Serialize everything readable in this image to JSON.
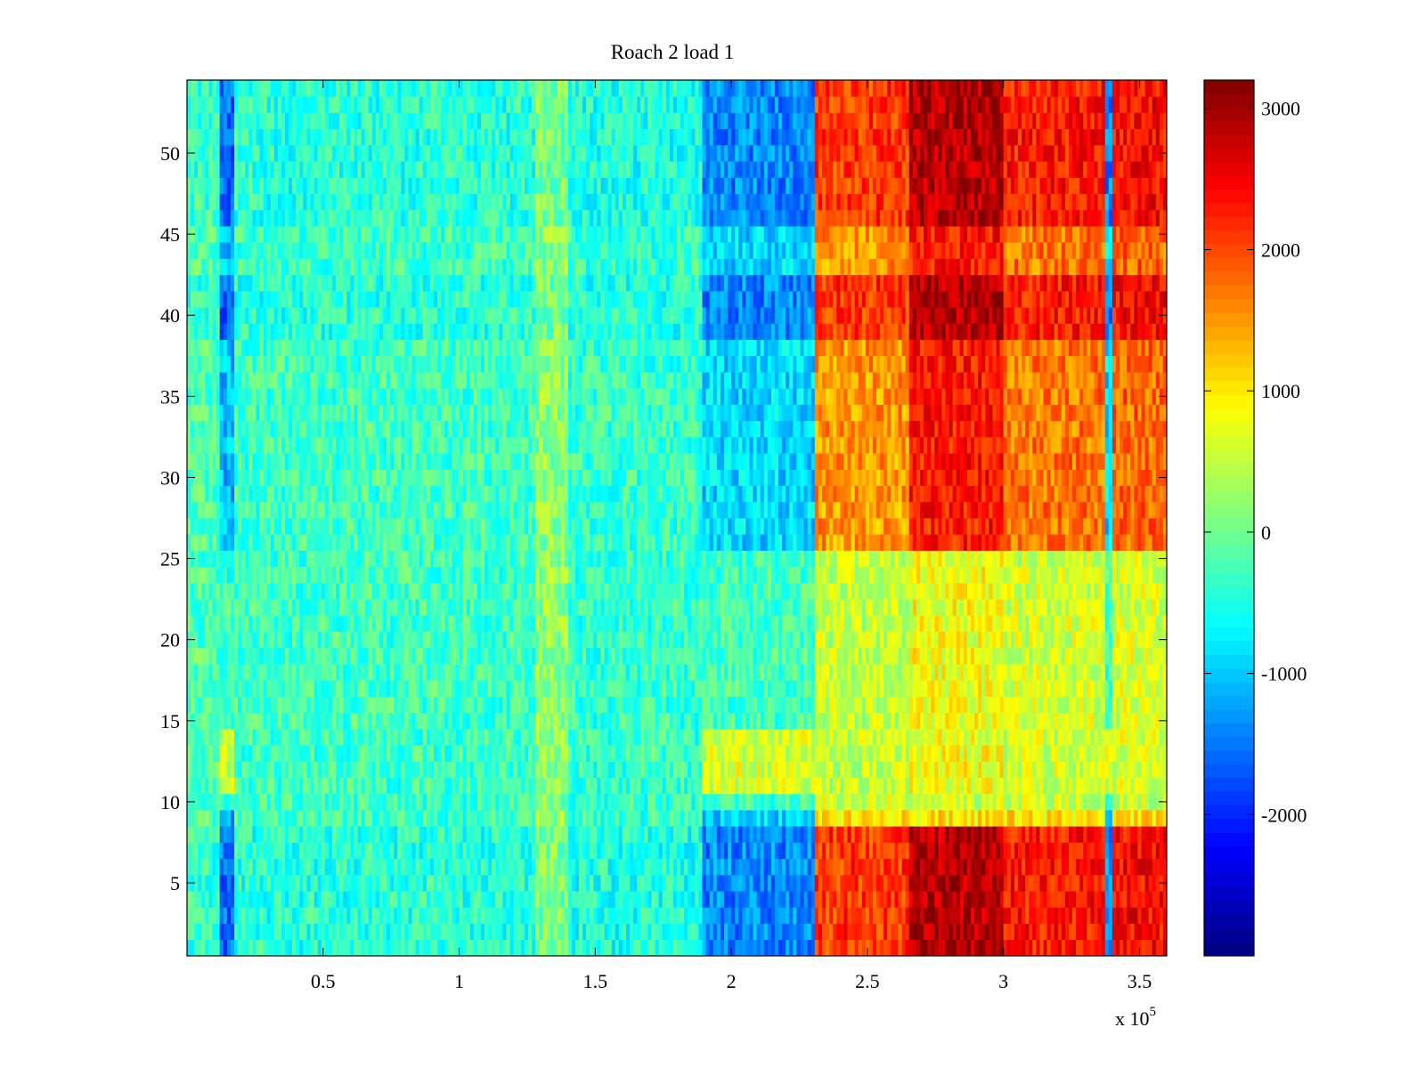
{
  "chart_data": {
    "type": "heatmap",
    "title": "Roach 2 load 1",
    "xlabel": "",
    "ylabel": "",
    "x_multiplier_label": "x 10",
    "x_multiplier_exponent": "5",
    "xlim": [
      0.0,
      3.6
    ],
    "ylim": [
      0.5,
      54.5
    ],
    "x_ticks": [
      {
        "value": 0.5,
        "label": "0.5"
      },
      {
        "value": 1.0,
        "label": "1"
      },
      {
        "value": 1.5,
        "label": "1.5"
      },
      {
        "value": 2.0,
        "label": "2"
      },
      {
        "value": 2.5,
        "label": "2.5"
      },
      {
        "value": 3.0,
        "label": "3"
      },
      {
        "value": 3.5,
        "label": "3.5"
      }
    ],
    "y_ticks": [
      {
        "value": 5,
        "label": "5"
      },
      {
        "value": 10,
        "label": "10"
      },
      {
        "value": 15,
        "label": "15"
      },
      {
        "value": 20,
        "label": "20"
      },
      {
        "value": 25,
        "label": "25"
      },
      {
        "value": 30,
        "label": "30"
      },
      {
        "value": 35,
        "label": "35"
      },
      {
        "value": 40,
        "label": "40"
      },
      {
        "value": 45,
        "label": "45"
      },
      {
        "value": 50,
        "label": "50"
      }
    ],
    "colorbar": {
      "colormap": "jet",
      "range": [
        -3000,
        3200
      ],
      "ticks": [
        {
          "value": 3000,
          "label": "3000"
        },
        {
          "value": 2000,
          "label": "2000"
        },
        {
          "value": 1000,
          "label": "1000"
        },
        {
          "value": 0,
          "label": "0"
        },
        {
          "value": -1000,
          "label": "-1000"
        },
        {
          "value": -2000,
          "label": "-2000"
        }
      ]
    },
    "rows": 54,
    "row_profile": {
      "hot_rows": [
        1,
        2,
        3,
        4,
        5,
        6,
        7,
        8,
        39,
        40,
        41,
        42,
        46,
        47,
        48,
        49,
        50,
        51,
        52,
        53,
        54
      ],
      "quiet_rows": [
        10,
        11,
        12,
        13,
        14,
        15,
        16,
        17,
        18,
        19,
        20,
        21,
        22,
        23,
        24,
        25
      ]
    },
    "x_segments": [
      {
        "x_range": [
          0.0,
          0.12
        ],
        "value": -200
      },
      {
        "x_range": [
          0.12,
          0.18
        ],
        "value": -1100
      },
      {
        "x_range": [
          0.18,
          1.28
        ],
        "value": -300
      },
      {
        "x_range": [
          1.28,
          1.4
        ],
        "value": 200
      },
      {
        "x_range": [
          1.4,
          1.9
        ],
        "value": -350
      },
      {
        "x_range": [
          1.9,
          2.31
        ],
        "value": -900
      },
      {
        "x_range": [
          2.31,
          2.65
        ],
        "value": 1500
      },
      {
        "x_range": [
          2.65,
          3.0
        ],
        "value": 2300
      },
      {
        "x_range": [
          3.0,
          3.37
        ],
        "value": 1700
      },
      {
        "x_range": [
          3.37,
          3.4
        ],
        "value": -900
      },
      {
        "x_range": [
          3.4,
          3.6
        ],
        "value": 1800
      }
    ]
  }
}
